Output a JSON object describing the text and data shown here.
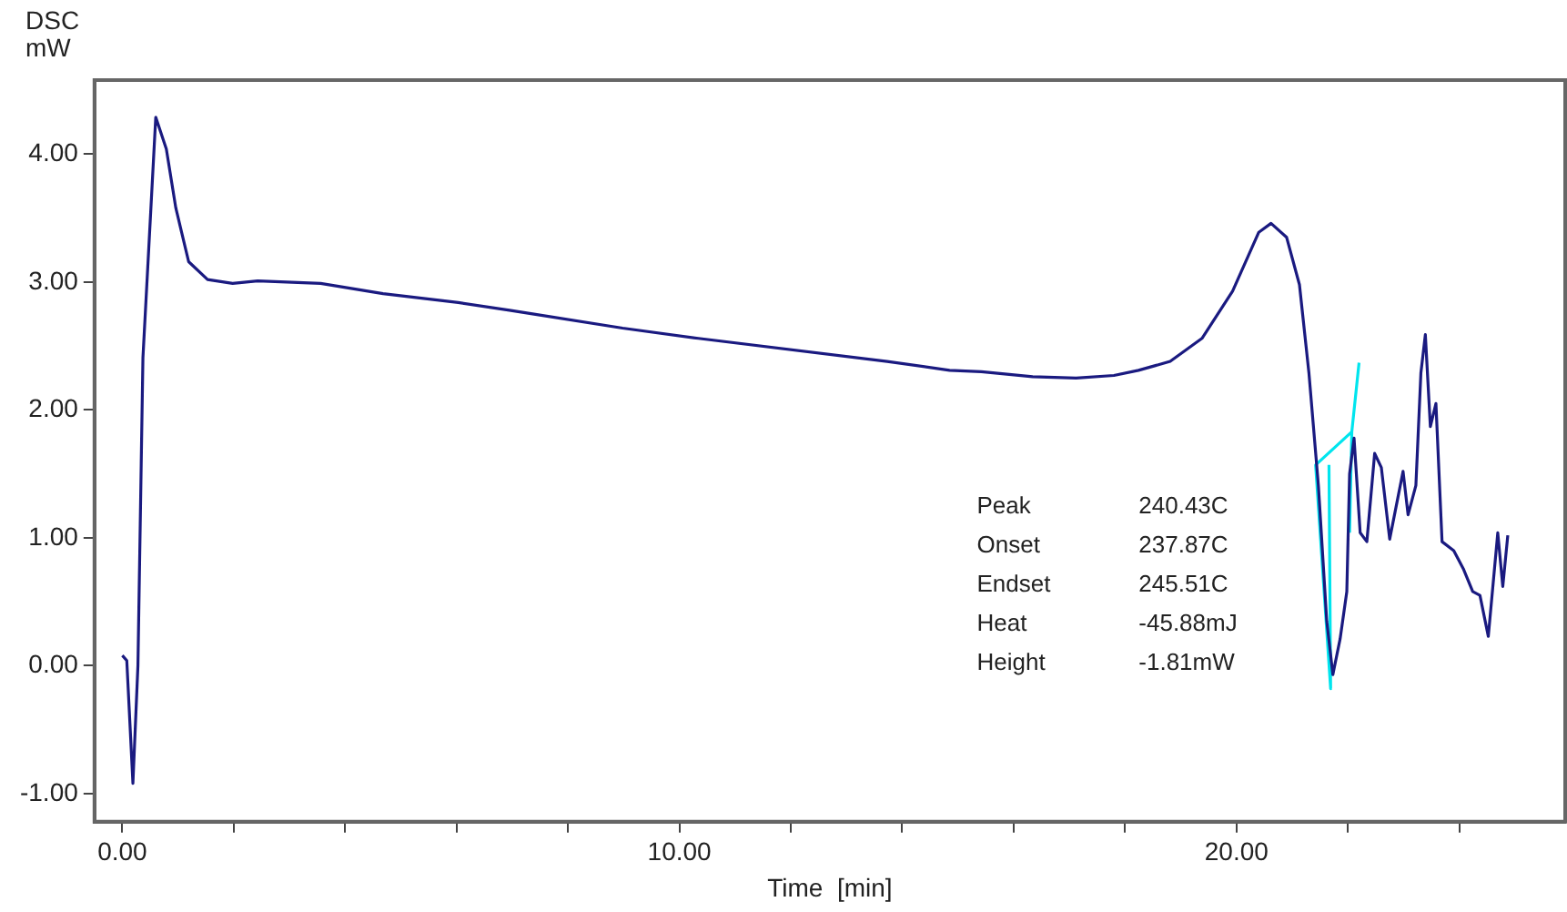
{
  "chart_data": {
    "type": "line",
    "xlabel": "Time  [min]",
    "ylabel": "DSC mW",
    "xlim": [
      -0.5,
      25.9
    ],
    "ylim": [
      -1.22,
      4.58
    ],
    "xticks": [
      {
        "value": 0,
        "label": "0.00"
      },
      {
        "value": 2,
        "label": null
      },
      {
        "value": 4,
        "label": null
      },
      {
        "value": 6,
        "label": null
      },
      {
        "value": 8,
        "label": null
      },
      {
        "value": 10,
        "label": "10.00"
      },
      {
        "value": 12,
        "label": null
      },
      {
        "value": 14,
        "label": null
      },
      {
        "value": 16,
        "label": null
      },
      {
        "value": 18,
        "label": null
      },
      {
        "value": 20,
        "label": "20.00"
      },
      {
        "value": 22,
        "label": null
      },
      {
        "value": 24,
        "label": null
      }
    ],
    "yticks": [
      {
        "value": -1,
        "label": "-1.00"
      },
      {
        "value": 0,
        "label": "0.00"
      },
      {
        "value": 1,
        "label": "1.00"
      },
      {
        "value": 2,
        "label": "2.00"
      },
      {
        "value": 3,
        "label": "3.00"
      },
      {
        "value": 4,
        "label": "4.00"
      }
    ],
    "grid": false,
    "legend": false,
    "marker": "none",
    "line_style": "solid",
    "annotations": [
      "Peak",
      "240.43C",
      "Onset",
      "237.87C",
      "Endset",
      "245.51C",
      "Heat",
      "-45.88mJ",
      "Height",
      "-1.81mW"
    ],
    "series": [
      {
        "color": "#1a1a80",
        "x": [
          0.0,
          0.08,
          0.19,
          0.28,
          0.37,
          0.6,
          0.79,
          0.96,
          1.19,
          1.53,
          1.98,
          2.43,
          3.56,
          4.68,
          6.03,
          6.95,
          7.39,
          8.98,
          10.34,
          13.73,
          14.85,
          15.42,
          16.34,
          17.12,
          17.8,
          18.24,
          18.81,
          19.38,
          19.93,
          20.4,
          20.62,
          20.9,
          21.13,
          21.3,
          21.47,
          21.62,
          21.73,
          21.86,
          21.98,
          22.03,
          22.11,
          22.22,
          22.34,
          22.48,
          22.6,
          22.75,
          22.99,
          23.08,
          23.22,
          23.31,
          23.39,
          23.48,
          23.58,
          23.69,
          23.9,
          24.07,
          24.24,
          24.37,
          24.52,
          24.69,
          24.78,
          24.87
        ],
        "values": [
          0.08,
          0.04,
          -0.92,
          0.0,
          2.41,
          4.29,
          4.04,
          3.58,
          3.16,
          3.02,
          2.99,
          3.01,
          2.99,
          2.91,
          2.84,
          2.78,
          2.75,
          2.64,
          2.56,
          2.38,
          2.31,
          2.3,
          2.26,
          2.25,
          2.27,
          2.31,
          2.38,
          2.56,
          2.93,
          3.39,
          3.46,
          3.35,
          2.98,
          2.29,
          1.41,
          0.35,
          -0.07,
          0.21,
          0.58,
          1.5,
          1.78,
          1.04,
          0.97,
          1.66,
          1.55,
          0.99,
          1.52,
          1.18,
          1.41,
          2.29,
          2.59,
          1.87,
          2.05,
          0.97,
          0.9,
          0.76,
          0.58,
          0.55,
          0.23,
          1.04,
          0.62,
          1.02
        ]
      },
      {
        "color": "#00e5ee",
        "x": [
          22.2,
          22.07,
          21.42,
          21.69,
          21.66,
          21.9,
          22.07,
          22.03
        ],
        "values": [
          2.37,
          1.83,
          1.57,
          -0.18,
          1.57,
          null,
          1.83,
          1.04
        ]
      }
    ]
  }
}
